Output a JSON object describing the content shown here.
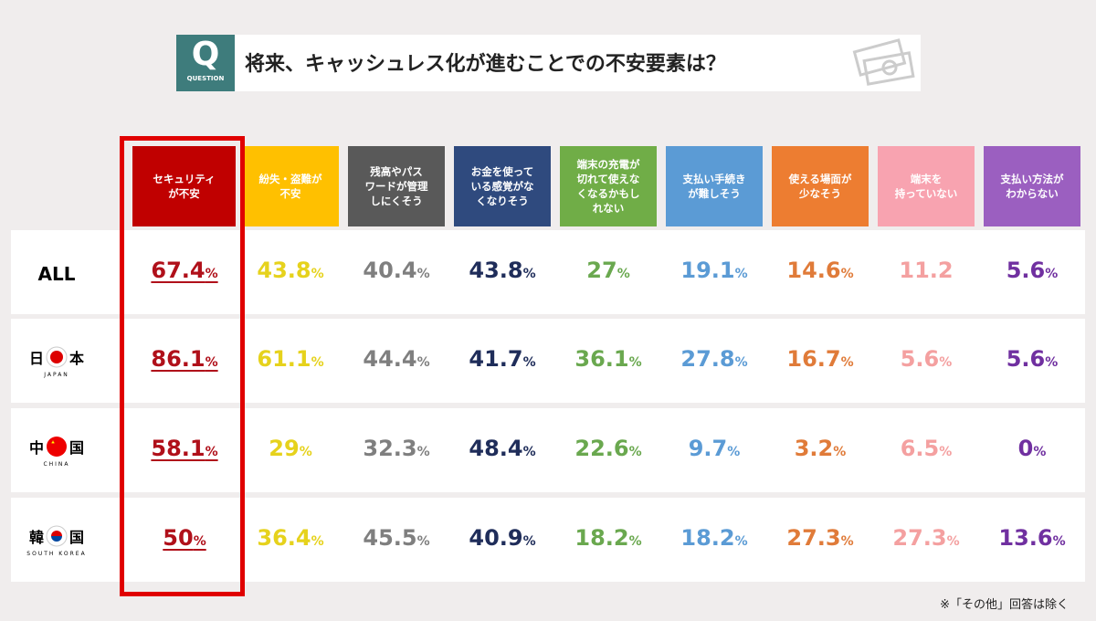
{
  "header": {
    "icon": "Q",
    "icon_sub": "QUESTION",
    "title": "将来、キャッシュレス化が進むことでの不安要素は？"
  },
  "columns": [
    {
      "label": "セキュリティ\nが不安",
      "color": "#c00000",
      "text_color": "#b0101a"
    },
    {
      "label": "紛失・盗難が\n不安",
      "color": "#ffc000",
      "text_color": "#e6d21c"
    },
    {
      "label": "残高やパス\nワードが管理\nしにくそう",
      "color": "#595959",
      "text_color": "#7f7f7f"
    },
    {
      "label": "お金を使って\nいる感覚がな\nくなりそう",
      "color": "#2f4a7e",
      "text_color": "#1f2d5a"
    },
    {
      "label": "端末の充電が\n切れて使えな\nくなるかもし\nれない",
      "color": "#70ad47",
      "text_color": "#6aa84f"
    },
    {
      "label": "支払い手続き\nが難しそう",
      "color": "#5b9bd5",
      "text_color": "#5b9bd5"
    },
    {
      "label": "使える場面が\n少なそう",
      "color": "#ed7d31",
      "text_color": "#e07b39"
    },
    {
      "label": "端末を\n持っていない",
      "color": "#f8a3b0",
      "text_color": "#f4a0a0"
    },
    {
      "label": "支払い方法が\nわからない",
      "color": "#9b5fc0",
      "text_color": "#7030a0"
    }
  ],
  "rows": [
    {
      "name_parts": [
        "ALL"
      ],
      "cells": [
        {
          "v": 67.4,
          "u": "%"
        },
        {
          "v": 43.8,
          "u": "%"
        },
        {
          "v": 40.4,
          "u": "%"
        },
        {
          "v": 43.8,
          "u": "%"
        },
        {
          "v": 27,
          "u": "%"
        },
        {
          "v": 19.1,
          "u": "%"
        },
        {
          "v": 14.6,
          "u": "%"
        },
        {
          "v": 11.2
        },
        {
          "v": 5.6,
          "u": "%"
        }
      ]
    },
    {
      "name_parts": [
        "日",
        "本"
      ],
      "sub": "JAPAN",
      "flag": "jp",
      "cells": [
        {
          "v": 86.1,
          "u": "%"
        },
        {
          "v": 61.1,
          "u": "%"
        },
        {
          "v": 44.4,
          "u": "%"
        },
        {
          "v": 41.7,
          "u": "%"
        },
        {
          "v": 36.1,
          "u": "%"
        },
        {
          "v": 27.8,
          "u": "%"
        },
        {
          "v": 16.7,
          "u": "%"
        },
        {
          "v": 5.6,
          "u": "%"
        },
        {
          "v": 5.6,
          "u": "%"
        }
      ]
    },
    {
      "name_parts": [
        "中",
        "国"
      ],
      "sub": "CHINA",
      "flag": "cn",
      "cells": [
        {
          "v": 58.1,
          "u": "%"
        },
        {
          "v": 29,
          "u": "%"
        },
        {
          "v": 32.3,
          "u": "%"
        },
        {
          "v": 48.4,
          "u": "%"
        },
        {
          "v": 22.6,
          "u": "%"
        },
        {
          "v": 9.7,
          "u": "%"
        },
        {
          "v": 3.2,
          "u": "%"
        },
        {
          "v": 6.5,
          "u": "%"
        },
        {
          "v": 0,
          "u": "%"
        }
      ]
    },
    {
      "name_parts": [
        "韓",
        "国"
      ],
      "sub": "SOUTH KOREA",
      "flag": "kr",
      "cells": [
        {
          "v": 50,
          "u": "%"
        },
        {
          "v": 36.4,
          "u": "%"
        },
        {
          "v": 45.5,
          "u": "%"
        },
        {
          "v": 40.9,
          "u": "%"
        },
        {
          "v": 18.2,
          "u": "%"
        },
        {
          "v": 18.2,
          "u": "%"
        },
        {
          "v": 27.3,
          "u": "%"
        },
        {
          "v": 27.3,
          "u": "%"
        },
        {
          "v": 13.6,
          "u": "%"
        }
      ]
    }
  ],
  "footnote": "※「その他」回答は除く"
}
